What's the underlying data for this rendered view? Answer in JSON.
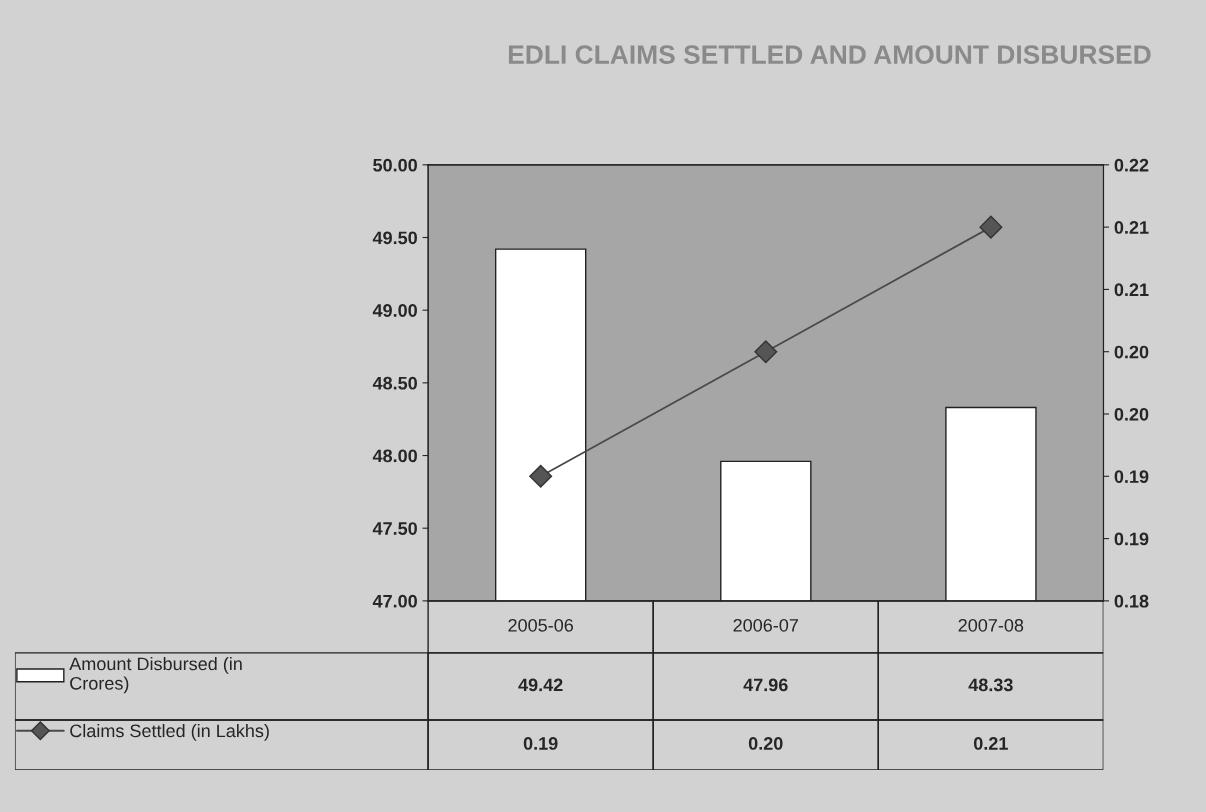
{
  "chart_data": {
    "type": "bar",
    "title": "EDLI CLAIMS SETTLED AND AMOUNT DISBURSED",
    "categories": [
      "2005-06",
      "2006-07",
      "2007-08"
    ],
    "series": [
      {
        "name": "Amount Disbursed (in Crores)",
        "color": "#ffffff",
        "values": [
          49.42,
          47.96,
          48.33
        ],
        "value_labels": [
          "49.42",
          "47.96",
          "48.33"
        ]
      },
      {
        "name": "Claims Settled (in Lakhs)",
        "type": "line",
        "axis": "y2",
        "color": "#4a4a4a",
        "marker": "diamond",
        "values": [
          0.19,
          0.2,
          0.21
        ],
        "value_labels": [
          "0.19",
          "0.20",
          "0.21"
        ]
      }
    ],
    "ylim": [
      47.0,
      50.0
    ],
    "yticks": [
      {
        "value": 47.0,
        "label": "47.00"
      },
      {
        "value": 47.5,
        "label": "47.50"
      },
      {
        "value": 48.0,
        "label": "48.00"
      },
      {
        "value": 48.5,
        "label": "48.50"
      },
      {
        "value": 49.0,
        "label": "49.00"
      },
      {
        "value": 49.5,
        "label": "49.50"
      },
      {
        "value": 50.0,
        "label": "50.00"
      }
    ],
    "y2lim": [
      0.18,
      0.215
    ],
    "y2ticks": [
      {
        "value": 0.18,
        "label": "0.18"
      },
      {
        "value": 0.185,
        "label": "0.19"
      },
      {
        "value": 0.19,
        "label": "0.19"
      },
      {
        "value": 0.195,
        "label": "0.20"
      },
      {
        "value": 0.2,
        "label": "0.20"
      },
      {
        "value": 0.205,
        "label": "0.21"
      },
      {
        "value": 0.21,
        "label": "0.21"
      },
      {
        "value": 0.215,
        "label": "0.22"
      }
    ],
    "legend": "bottom",
    "grid": false
  }
}
